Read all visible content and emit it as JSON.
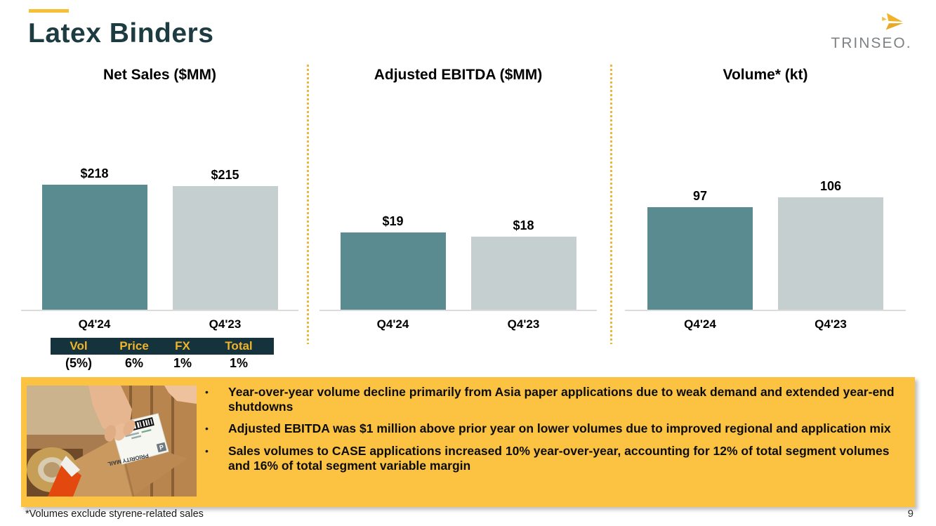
{
  "slide": {
    "title": "Latex Binders",
    "logo_text": "TRINSEO.",
    "footnote": "*Volumes exclude styrene-related sales",
    "page_number": "9"
  },
  "colors": {
    "accent_gold": "#F5C033",
    "callout_gold": "#FBC341",
    "title_teal": "#1D3C42",
    "current_bar": "#598B91",
    "prior_bar": "#C6CFCF",
    "table_header_bg": "#14333C",
    "table_header_text": "#F0B32A"
  },
  "chart_data": [
    {
      "type": "bar",
      "title": "Net Sales ($MM)",
      "categories": [
        "Q4'24",
        "Q4'23"
      ],
      "values": [
        218,
        215
      ],
      "value_labels": [
        "$218",
        "$215"
      ],
      "ylim": [
        0,
        240
      ],
      "grid": false,
      "legend": "none"
    },
    {
      "type": "bar",
      "title": "Adjusted EBITDA ($MM)",
      "categories": [
        "Q4'24",
        "Q4'23"
      ],
      "values": [
        19,
        18
      ],
      "value_labels": [
        "$19",
        "$18"
      ],
      "ylim": [
        0,
        34
      ],
      "grid": false,
      "legend": "none"
    },
    {
      "type": "bar",
      "title": "Volume* (kt)",
      "categories": [
        "Q4'24",
        "Q4'23"
      ],
      "values": [
        97,
        106
      ],
      "value_labels": [
        "97",
        "106"
      ],
      "ylim": [
        0,
        130
      ],
      "grid": false,
      "legend": "none"
    }
  ],
  "bridge_table": {
    "headers": [
      "Vol",
      "Price",
      "FX",
      "Total"
    ],
    "values": [
      "(5%)",
      "6%",
      "1%",
      "1%"
    ]
  },
  "callout": {
    "photo_alt": "Hands applying a Priority Mail shipping label to a cardboard box",
    "bullets": [
      "Year-over-year volume decline primarily from Asia paper applications due to weak demand and extended year-end shutdowns",
      "Adjusted EBITDA was $1 million above prior year on lower volumes due to improved regional and application mix",
      "Sales volumes to CASE applications increased 10% year-over-year, accounting for 12% of total segment volumes and 16% of total segment variable margin"
    ]
  }
}
